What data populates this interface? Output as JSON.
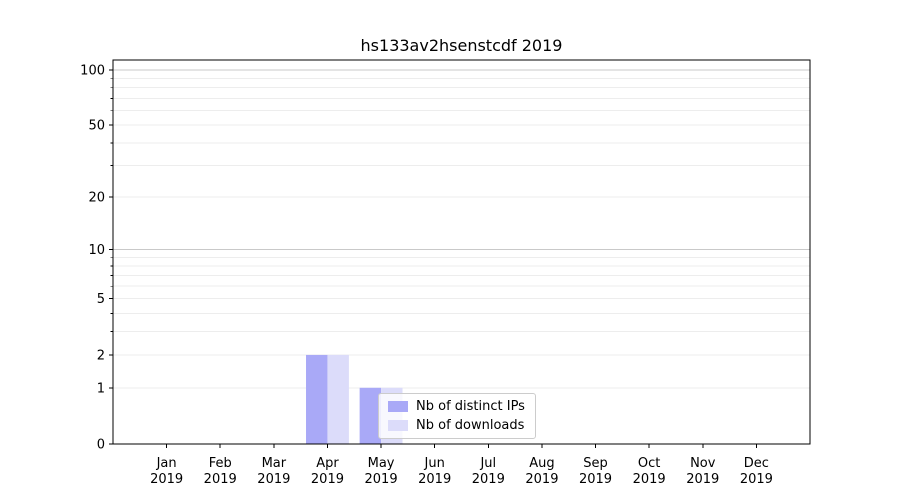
{
  "chart_data": {
    "type": "bar",
    "title": "hs133av2hsenstcdf 2019",
    "categories": [
      "Jan",
      "Feb",
      "Mar",
      "Apr",
      "May",
      "Jun",
      "Jul",
      "Aug",
      "Sep",
      "Oct",
      "Nov",
      "Dec"
    ],
    "x_year_label": "2019",
    "series": [
      {
        "name": "Nb of distinct IPs",
        "color": "#a9a9f7",
        "values": [
          0,
          0,
          0,
          2,
          1,
          0,
          0,
          0,
          0,
          0,
          0,
          0
        ]
      },
      {
        "name": "Nb of downloads",
        "color": "#dcdcfa",
        "values": [
          0,
          0,
          0,
          2,
          1,
          0,
          0,
          0,
          0,
          0,
          0,
          0
        ]
      }
    ],
    "yscale": "log1p",
    "ylim": [
      0,
      113
    ],
    "yticks": [
      0,
      1,
      2,
      5,
      10,
      20,
      50,
      100
    ],
    "grid": {
      "minor_values": [
        1,
        2,
        3,
        4,
        5,
        6,
        7,
        8,
        9,
        20,
        30,
        40,
        50,
        60,
        70,
        80,
        90
      ],
      "major_values": [
        10,
        100
      ]
    },
    "legend_position": "lower center"
  },
  "colors": {
    "background": "#ffffff",
    "bar_distinct_ips": "#a9a9f7",
    "bar_downloads": "#dcdcfa",
    "grid_minor": "#ededed",
    "grid_major": "#c9c9c9",
    "spine": "#000000",
    "tick": "#000000",
    "text": "#000000",
    "legend_border": "#cccccc"
  }
}
